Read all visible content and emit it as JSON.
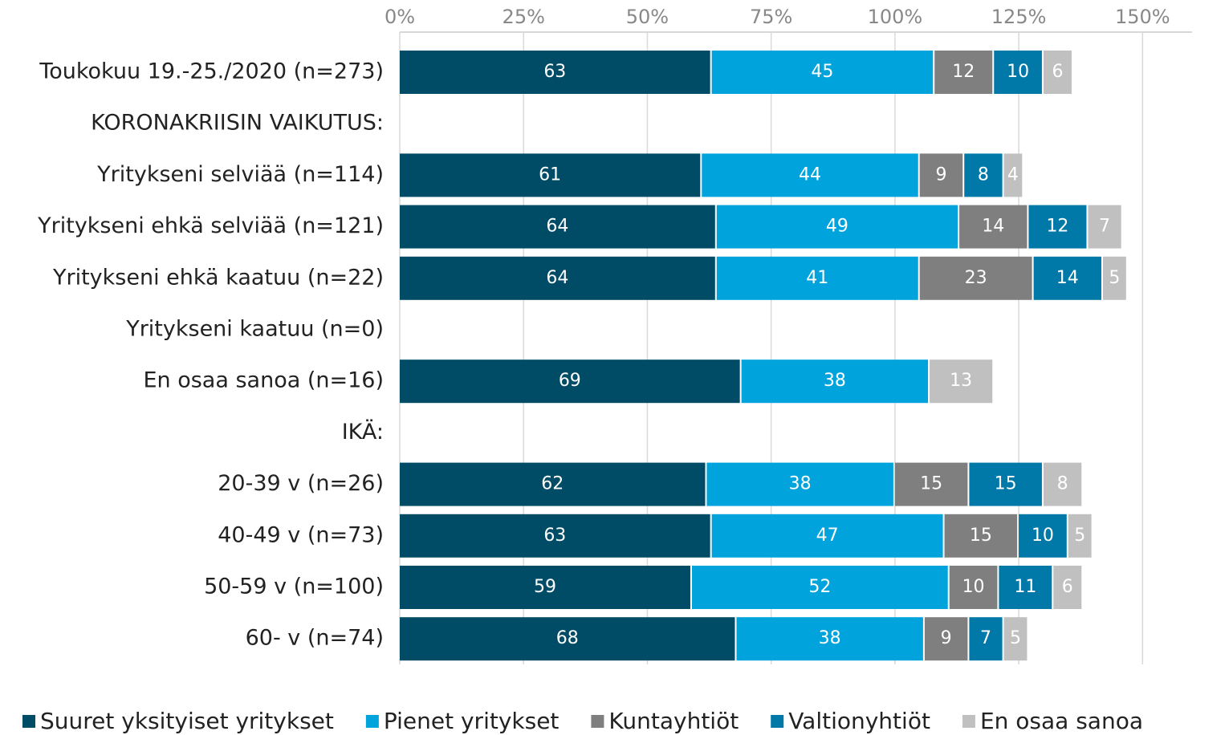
{
  "chart_data": {
    "type": "stacked-barh",
    "categories": [
      "Toukokuu 19.-25./2020 (n=273)",
      "KORONAKRIISIN VAIKUTUS:",
      "Yritykseni selviää (n=114)",
      "Yritykseni ehkä selviää (n=121)",
      "Yritykseni ehkä kaatuu (n=22)",
      "Yritykseni kaatuu (n=0)",
      "En osaa sanoa (n=16)",
      "IKÄ:",
      "20-39 v (n=26)",
      "40-49 v (n=73)",
      "50-59 v (n=100)",
      "60- v (n=74)"
    ],
    "series": [
      {
        "name": "Suuret yksityiset yritykset",
        "color": "#004c66",
        "values": [
          63,
          null,
          61,
          64,
          64,
          null,
          69,
          null,
          62,
          63,
          59,
          68
        ]
      },
      {
        "name": "Pienet yritykset",
        "color": "#00a3dc",
        "values": [
          45,
          null,
          44,
          49,
          41,
          null,
          38,
          null,
          38,
          47,
          52,
          38
        ]
      },
      {
        "name": "Kuntayhtiöt",
        "color": "#7f7f7f",
        "values": [
          12,
          null,
          9,
          14,
          23,
          null,
          null,
          null,
          15,
          15,
          10,
          9
        ]
      },
      {
        "name": "Valtionyhtiöt",
        "color": "#0079a8",
        "values": [
          10,
          null,
          8,
          12,
          14,
          null,
          null,
          null,
          15,
          10,
          11,
          7
        ]
      },
      {
        "name": "En osaa sanoa",
        "color": "#c0c0c0",
        "values": [
          6,
          null,
          4,
          7,
          5,
          null,
          13,
          null,
          8,
          5,
          6,
          5
        ]
      }
    ],
    "xlim": [
      0,
      160
    ],
    "xticks": [
      {
        "value": 0,
        "label": "0%"
      },
      {
        "value": 25,
        "label": "25%"
      },
      {
        "value": 50,
        "label": "50%"
      },
      {
        "value": 75,
        "label": "75%"
      },
      {
        "value": 100,
        "label": "100%"
      },
      {
        "value": 125,
        "label": "125%"
      },
      {
        "value": 150,
        "label": "150%"
      }
    ],
    "grid": true,
    "legend": "bottom"
  }
}
